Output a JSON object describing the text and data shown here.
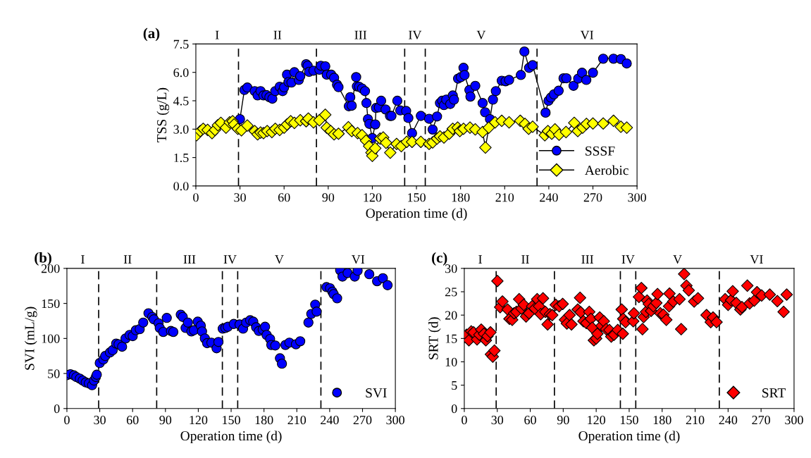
{
  "chart_data": [
    {
      "type": "line",
      "title": "(a)",
      "xlabel": "Operation time (d)",
      "ylabel": "TSS (g/L)",
      "xlim": [
        0,
        300
      ],
      "xticks": [
        0,
        30,
        60,
        90,
        120,
        150,
        180,
        210,
        240,
        270,
        300
      ],
      "ylim": [
        0,
        7.5
      ],
      "yticks": [
        {
          "value": 0,
          "label": "0.0"
        },
        1.5,
        {
          "value": 3,
          "label": "3.0"
        },
        4.5,
        {
          "value": 6,
          "label": "6.0"
        },
        7.5
      ],
      "grid": false,
      "legend": "bottom right",
      "ref_lines": [
        {
          "axis": "x",
          "value": 29,
          "line_style": "dashed"
        },
        {
          "axis": "x",
          "value": 82,
          "line_style": "dashed"
        },
        {
          "axis": "x",
          "value": 142,
          "line_style": "dashed"
        },
        {
          "axis": "x",
          "value": 156,
          "line_style": "dashed"
        },
        {
          "axis": "x",
          "value": 232,
          "line_style": "dashed"
        }
      ],
      "annotations": [
        "I",
        "II",
        "III",
        "IV",
        "V",
        "VI"
      ],
      "series": [
        {
          "name": "SSSF",
          "color": "#0000ff",
          "marker": "circle",
          "x": [
            30,
            33,
            35,
            40,
            42,
            44,
            46,
            48,
            50,
            52,
            54,
            57,
            59,
            60,
            62,
            63,
            65,
            67,
            70,
            71,
            75,
            76,
            77,
            80,
            84,
            85,
            88,
            89,
            92,
            94,
            96,
            97,
            104,
            105,
            106,
            109,
            109.5,
            111,
            113,
            115,
            116,
            117,
            118,
            120,
            122,
            122.5,
            124.5,
            126,
            129,
            132,
            133,
            137,
            139,
            143,
            144.5,
            147,
            153,
            158.6,
            161,
            164,
            166,
            167.5,
            168.7,
            170.3,
            173,
            174.7,
            175.5,
            178.3,
            180.2,
            182,
            182.7,
            186,
            186.7,
            190,
            195,
            196.7,
            200,
            202,
            204,
            208,
            210.6,
            213,
            221,
            223.4,
            226.6,
            229,
            237.8,
            239.8,
            241.4,
            243.5,
            246.7,
            250,
            252,
            256.8,
            260,
            262.6,
            265.5,
            270,
            277,
            284,
            289,
            293
          ],
          "values": [
            3.53,
            5.07,
            5.2,
            5.01,
            4.78,
            5.01,
            4.78,
            4.8,
            4.69,
            4.61,
            5.01,
            5.24,
            5.01,
            5.21,
            5.88,
            5.49,
            5.46,
            6.01,
            5.6,
            5.8,
            6.43,
            6.35,
            6.03,
            6.09,
            6.14,
            6.35,
            6.32,
            5.88,
            5.88,
            5.71,
            5.35,
            5.22,
            4.21,
            4.69,
            4.24,
            5.75,
            5.26,
            5.24,
            5.15,
            5.01,
            4.38,
            3.53,
            3.28,
            2.53,
            3.25,
            4.12,
            4.15,
            4.5,
            4.04,
            3.7,
            3.7,
            4.5,
            3.99,
            3.96,
            3.59,
            2.79,
            3.7,
            3.55,
            2.98,
            3.67,
            4.38,
            4.5,
            4.27,
            4.56,
            4.33,
            4.78,
            4.56,
            5.67,
            5.75,
            6.24,
            5.86,
            5.07,
            4.72,
            5.29,
            4.38,
            3.89,
            3.53,
            4.56,
            5.01,
            5.56,
            5.53,
            5.6,
            5.86,
            7.1,
            6.24,
            6.38,
            3.87,
            4.5,
            4.67,
            4.84,
            5.03,
            5.69,
            5.69,
            5.29,
            5.67,
            5.98,
            5.6,
            5.98,
            6.72,
            6.72,
            6.7,
            6.47
          ]
        },
        {
          "name": "Aerobic",
          "color": "#ffff00",
          "marker": "diamond",
          "x": [
            0.5,
            3,
            5,
            8,
            11,
            13,
            15,
            17,
            20.5,
            23,
            25,
            26,
            28.5,
            31,
            35,
            40,
            42,
            44,
            46,
            48.5,
            51.7,
            54,
            57,
            60,
            62,
            64.5,
            67,
            71,
            75,
            76.5,
            80,
            84,
            88,
            89,
            91.7,
            94,
            97,
            103.7,
            106,
            110,
            113,
            115.7,
            117.8,
            119.4,
            120,
            122,
            125.3,
            127.4,
            129.3,
            132.2,
            136.5,
            139.7,
            143.4,
            147,
            153,
            158.6,
            161,
            164,
            166,
            168.7,
            172.3,
            174.7,
            178,
            179.5,
            182,
            186.4,
            190,
            195,
            196.9,
            199.2,
            203.5,
            208,
            213,
            220.6,
            223.8,
            226.3,
            229,
            237.3,
            239.4,
            242,
            244.2,
            247,
            251.7,
            257.3,
            259.7,
            263,
            265.6,
            270,
            277,
            284,
            289,
            293
          ],
          "values": [
            2.68,
            2.9,
            3.02,
            2.96,
            2.79,
            2.96,
            3.21,
            3.33,
            3.08,
            3.36,
            3.42,
            3.25,
            3.02,
            2.94,
            3.19,
            2.9,
            2.73,
            2.82,
            2.79,
            2.9,
            2.85,
            3.02,
            2.96,
            3.08,
            3.25,
            3.42,
            3.33,
            3.47,
            3.42,
            3.56,
            3.36,
            3.47,
            3.76,
            3.08,
            2.9,
            2.73,
            2.76,
            3.1,
            2.9,
            2.79,
            2.68,
            2.39,
            2.1,
            1.76,
            1.59,
            1.99,
            2.5,
            2.56,
            2.28,
            1.76,
            2.22,
            2.1,
            2.33,
            2.33,
            2.33,
            2.22,
            2.3,
            2.5,
            2.62,
            2.56,
            2.76,
            3.02,
            3.08,
            2.9,
            3.02,
            3.08,
            2.99,
            2.85,
            2.03,
            3.08,
            3.36,
            3.44,
            3.36,
            3.44,
            3.28,
            3.02,
            3.13,
            2.68,
            2.9,
            2.76,
            2.99,
            2.71,
            2.85,
            3.33,
            2.9,
            3.08,
            3.28,
            3.3,
            3.3,
            3.44,
            3.13,
            3.08
          ]
        }
      ]
    },
    {
      "type": "scatter",
      "title": "(b)",
      "xlabel": "Operation time (d)",
      "ylabel": "SVI (mL/g)",
      "xlim": [
        0,
        300
      ],
      "xticks": [
        0,
        30,
        60,
        90,
        120,
        150,
        180,
        210,
        240,
        270,
        300
      ],
      "ylim": [
        0,
        200
      ],
      "yticks": [
        0,
        50,
        100,
        150,
        200
      ],
      "grid": false,
      "legend": "bottom right",
      "ref_lines": [
        {
          "axis": "x",
          "value": 29,
          "line_style": "dashed"
        },
        {
          "axis": "x",
          "value": 82,
          "line_style": "dashed"
        },
        {
          "axis": "x",
          "value": 142,
          "line_style": "dashed"
        },
        {
          "axis": "x",
          "value": 156,
          "line_style": "dashed"
        },
        {
          "axis": "x",
          "value": 232,
          "line_style": "dashed"
        }
      ],
      "annotations": [
        "I",
        "II",
        "III",
        "IV",
        "V",
        "VI"
      ],
      "series": [
        {
          "name": "SVI",
          "color": "#0000ff",
          "marker": "circle",
          "x": [
            0,
            3.2,
            6.4,
            8.6,
            11.8,
            14.4,
            17.2,
            20,
            23,
            24.7,
            26.4,
            27.3,
            30,
            33.3,
            35,
            39.3,
            41.8,
            45,
            47.2,
            50.4,
            53.6,
            57.3,
            60.1,
            62.9,
            66.5,
            69.7,
            74.5,
            77.9,
            79.4,
            83.7,
            84.8,
            88,
            91.2,
            95,
            97.2,
            104,
            105.8,
            108.4,
            110.5,
            113.7,
            115.9,
            119.5,
            122.3,
            123.4,
            126,
            128.1,
            132,
            136.7,
            138.4,
            142.3,
            144.8,
            147,
            152.4,
            157.7,
            160.9,
            163.7,
            167.4,
            170.2,
            172.8,
            175.3,
            178.8,
            181,
            182.4,
            185.6,
            186.7,
            190.3,
            194.6,
            196.4,
            199.6,
            203.2,
            209.2,
            213.1,
            220.6,
            223.2,
            226.8,
            228.1,
            237.1,
            240.3,
            242.5,
            243.6,
            246.8,
            249.6,
            251.7,
            256.4,
            262.9,
            265.5,
            276.2,
            283.3,
            288.6,
            292.9
          ],
          "values": [
            47.7,
            49,
            47.3,
            45,
            42.7,
            40,
            37.3,
            36,
            33.3,
            40,
            45,
            48.3,
            65,
            70,
            75,
            80,
            83.3,
            92.7,
            91.7,
            88.3,
            100,
            105,
            103.3,
            111.7,
            113.3,
            122.7,
            136,
            130.7,
            127.3,
            121.7,
            115,
            109.3,
            129.3,
            110.7,
            109.3,
            134,
            130.7,
            115,
            122.7,
            110,
            111.7,
            124,
            118.3,
            110,
            100,
            93.3,
            94,
            86,
            95,
            114,
            115,
            116.7,
            120.7,
            120,
            114,
            122.7,
            126,
            124,
            116,
            110.7,
            112.7,
            116.7,
            105,
            99.3,
            90.7,
            90,
            71.7,
            64,
            90.7,
            94,
            91.7,
            96,
            122.7,
            135,
            148.3,
            138.3,
            173.3,
            171.7,
            166.7,
            163.3,
            157.3,
            197.3,
            188.3,
            193.3,
            188.3,
            196.7,
            191.7,
            181.7,
            186,
            176
          ]
        }
      ]
    },
    {
      "type": "scatter",
      "title": "(c)",
      "xlabel": "Operation time (d)",
      "ylabel": "SRT (d)",
      "xlim": [
        0,
        300
      ],
      "xticks": [
        0,
        30,
        60,
        90,
        120,
        150,
        180,
        210,
        240,
        270,
        300
      ],
      "ylim": [
        0,
        30
      ],
      "yticks": [
        0,
        5,
        10,
        15,
        20,
        25,
        30
      ],
      "grid": false,
      "legend": "bottom right",
      "ref_lines": [
        {
          "axis": "x",
          "value": 29,
          "line_style": "dashed"
        },
        {
          "axis": "x",
          "value": 82,
          "line_style": "dashed"
        },
        {
          "axis": "x",
          "value": 142,
          "line_style": "dashed"
        },
        {
          "axis": "x",
          "value": 156,
          "line_style": "dashed"
        },
        {
          "axis": "x",
          "value": 232,
          "line_style": "dashed"
        }
      ],
      "annotations": [
        "I",
        "II",
        "III",
        "IV",
        "V",
        "VI"
      ],
      "series": [
        {
          "name": "SRT",
          "color": "#ff0000",
          "marker": "diamond",
          "x": [
            0,
            2.1,
            4.2,
            6.3,
            8.4,
            11.6,
            13.7,
            15.4,
            17.9,
            19.6,
            21.1,
            23.8,
            24.2,
            25.9,
            27.4,
            30.1,
            32.6,
            34.7,
            39.4,
            41.1,
            43.6,
            45.3,
            47.4,
            49.9,
            52,
            54.1,
            56.2,
            58.9,
            61.7,
            64.2,
            66.3,
            68,
            69.5,
            71.6,
            73.7,
            75.8,
            77.9,
            80,
            83.2,
            86.3,
            89.5,
            91.6,
            93.3,
            95.8,
            97.5,
            103.2,
            105.3,
            105.9,
            108.4,
            111,
            113.7,
            115.2,
            116.4,
            117.9,
            120,
            121.1,
            123.2,
            124.8,
            126.9,
            129.1,
            132,
            133.7,
            136.2,
            139.6,
            143.2,
            144.2,
            144.6,
            146.7,
            153.7,
            154.3,
            158.9,
            161.1,
            162.1,
            163.2,
            165.3,
            166.3,
            167.8,
            169.9,
            172,
            174.7,
            175.8,
            178.3,
            181.1,
            183.8,
            186.3,
            186.7,
            190.1,
            195.8,
            197.3,
            200,
            202.1,
            204.2,
            209.1,
            212.6,
            220.4,
            224.2,
            226.3,
            229.5,
            237.3,
            240,
            242.7,
            244.2,
            247.4,
            251.2,
            252.6,
            257.5,
            259.6,
            263.8,
            266.3,
            270.5,
            277.9,
            284.8,
            290.5,
            293.3
          ],
          "values": [
            15.3,
            15.8,
            14.6,
            16.5,
            16.3,
            14.8,
            15.8,
            16.9,
            16,
            14.6,
            15.5,
            16.3,
            11.6,
            11.1,
            12.4,
            27.3,
            21.7,
            22.9,
            21.2,
            19.2,
            19,
            20.4,
            20.7,
            23.4,
            21.4,
            22.2,
            19.7,
            20.4,
            21.9,
            21.4,
            23.4,
            21.9,
            20.2,
            23.6,
            20.7,
            18,
            20.2,
            20,
            22.2,
            21.9,
            22.4,
            19,
            18.2,
            20,
            18,
            21.2,
            23.7,
            20.6,
            18.7,
            18.3,
            20.7,
            19.2,
            17.3,
            14.6,
            15,
            16,
            19.5,
            17.7,
            18.7,
            17,
            16.8,
            15.4,
            15.8,
            16.8,
            21.2,
            16,
            19.2,
            18.5,
            18.7,
            20.4,
            23.9,
            25.8,
            17,
            19.6,
            20.7,
            23.1,
            22.4,
            20.9,
            21.9,
            22.6,
            24.5,
            20.4,
            20.1,
            19,
            21.9,
            24.6,
            22.9,
            23.4,
            17,
            28.8,
            26.3,
            25.3,
            22.9,
            23.6,
            20,
            18.5,
            19.5,
            18.5,
            23.4,
            22.2,
            23.2,
            25.1,
            22.6,
            21.2,
            21.7,
            26.3,
            22.5,
            23.1,
            24.9,
            24.2,
            24.4,
            23,
            20.7,
            24.4
          ]
        }
      ]
    }
  ]
}
